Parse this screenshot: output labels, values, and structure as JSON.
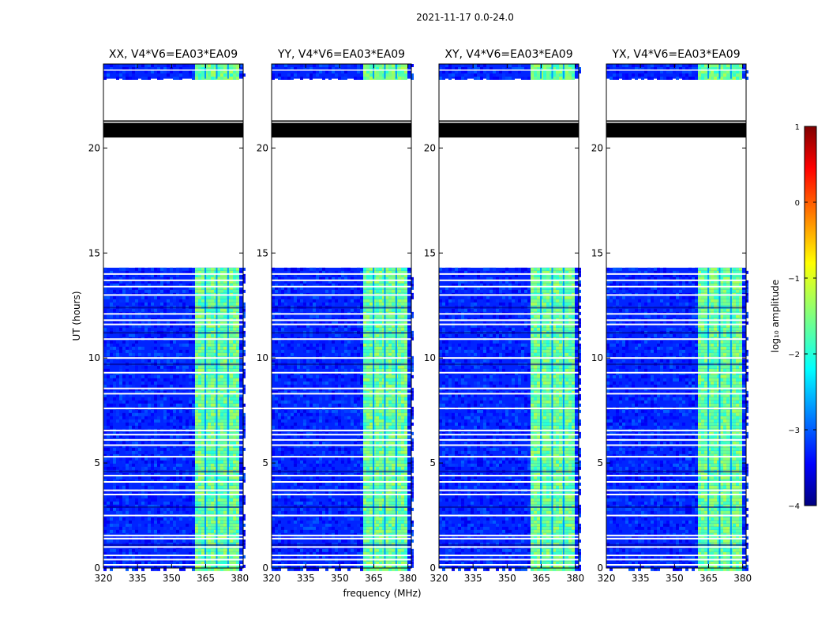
{
  "figure_title": "2021-11-17 0.0-24.0",
  "chart_data": {
    "type": "heatmap",
    "shared": {
      "xlabel": "frequency (MHz)",
      "ylabel": "UT (hours)",
      "xlim": [
        320,
        381.5
      ],
      "ylim": [
        0,
        24
      ],
      "x_ticks": [
        320,
        335,
        350,
        365,
        380
      ],
      "y_ticks": [
        0,
        5,
        10,
        15,
        20
      ],
      "x_tick_labels": [
        "320",
        "335",
        "350",
        "365",
        "380"
      ],
      "y_tick_labels": [
        "0",
        "5",
        "10",
        "15",
        "20"
      ],
      "colormap": "jet",
      "colorbar": {
        "label": "log₁₀ amplitude",
        "range": [
          -4,
          1
        ],
        "ticks": [
          -4,
          -3,
          -2,
          -1,
          0,
          1
        ],
        "tick_labels": [
          "−4",
          "−3",
          "−2",
          "−1",
          "0",
          "1"
        ]
      },
      "data_blocks_hours": [
        [
          0,
          14.3
        ],
        [
          23.3,
          24
        ]
      ],
      "flagged_black_hours": [
        [
          20.5,
          21.2
        ]
      ],
      "band_mhz": [
        359,
        378.5
      ],
      "background_level": -3.2,
      "band_level": -1.6
    },
    "panels": [
      {
        "title": "XX, V4*V6=EA03*EA09",
        "polarization": "XX"
      },
      {
        "title": "YY, V4*V6=EA03*EA09",
        "polarization": "YY"
      },
      {
        "title": "XY, V4*V6=EA03*EA09",
        "polarization": "XY"
      },
      {
        "title": "YX, V4*V6=EA03*EA09",
        "polarization": "YX"
      }
    ]
  }
}
